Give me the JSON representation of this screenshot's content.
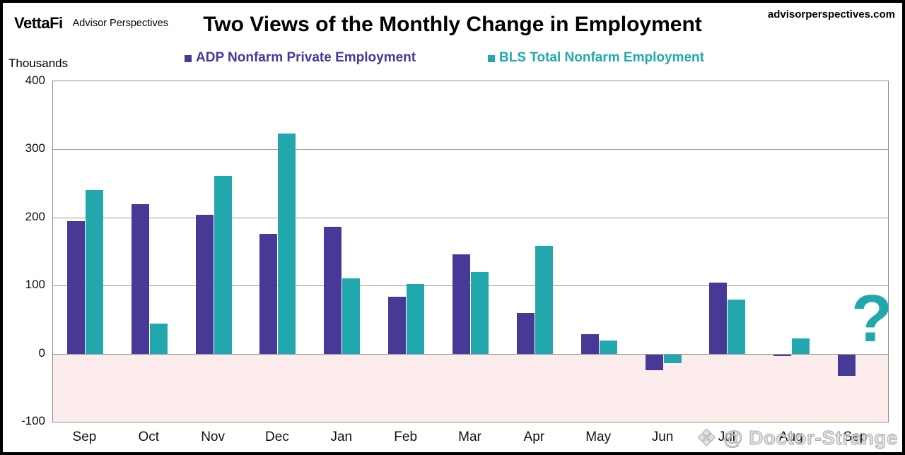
{
  "header": {
    "brand": "VettaFi",
    "brand_sub": "Advisor Perspectives",
    "title": "Two Views of the Monthly Change in Employment",
    "site": "advisorperspectives.com"
  },
  "legend": {
    "adp": "ADP Nonfarm Private Employment",
    "bls": "BLS Total Nonfarm Employment"
  },
  "watermark": {
    "icon": "❖",
    "text": "@ Doctor-Strange"
  },
  "chart_data": {
    "type": "bar",
    "title": "Two Views of the Monthly Change in Employment",
    "units_label": "Thousands",
    "categories": [
      "Sep",
      "Oct",
      "Nov",
      "Dec",
      "Jan",
      "Feb",
      "Mar",
      "Apr",
      "May",
      "Jun",
      "Jul",
      "Aug",
      "Sep"
    ],
    "series": [
      {
        "name": "ADP Nonfarm Private Employment",
        "color": "#473996",
        "values": [
          195,
          220,
          204,
          176,
          186,
          84,
          146,
          60,
          29,
          -23,
          104,
          -3,
          -32
        ]
      },
      {
        "name": "BLS Total Nonfarm Employment",
        "color": "#22a8ac",
        "values": [
          240,
          44,
          261,
          323,
          111,
          102,
          120,
          158,
          19,
          -13,
          79,
          22,
          null
        ]
      }
    ],
    "ylim": [
      -100,
      400
    ],
    "yticks": [
      400,
      300,
      200,
      100,
      0,
      -100
    ],
    "grid": true,
    "legend_position": "top",
    "negative_region_color": "#fcecec",
    "gridline_color": "#9a9a9a",
    "annotation": {
      "text": "?",
      "color": "#22a8ac",
      "category": "Sep",
      "series": "BLS Total Nonfarm Employment"
    }
  }
}
